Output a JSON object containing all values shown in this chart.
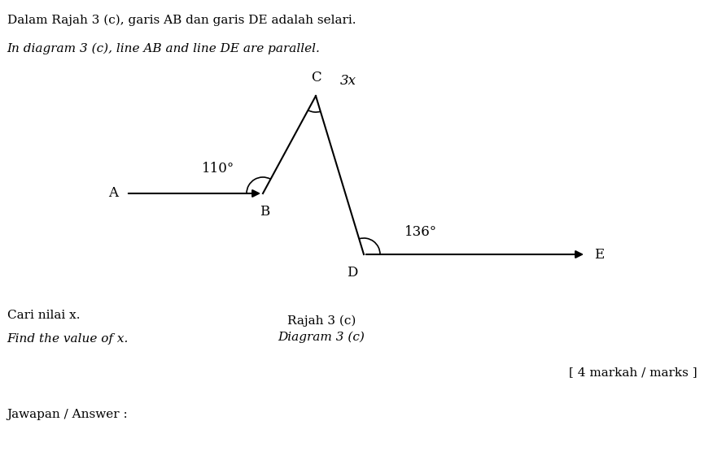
{
  "title_malay": "Dalam Rajah 3 (c), garis AB dan garis DE adalah selari.",
  "title_english": "In diagram 3 (c), line AB and line DE are parallel.",
  "diagram_label_malay": "Rajah 3 (c)",
  "diagram_label_english": "Diagram 3 (c)",
  "question_malay": "Cari nilai x.",
  "question_english": "Find the value of x.",
  "marks_label": "[ 4 markah / marks ]",
  "answer_label": "Jawapan / Answer :",
  "bg_color": "#ffffff",
  "line_color": "#000000",
  "text_color": "#000000",
  "font_size_main": 11,
  "font_size_angle": 12,
  "font_size_point": 12,
  "angle_B_label": "110°",
  "angle_C_label": "3x",
  "angle_D_label": "136°"
}
